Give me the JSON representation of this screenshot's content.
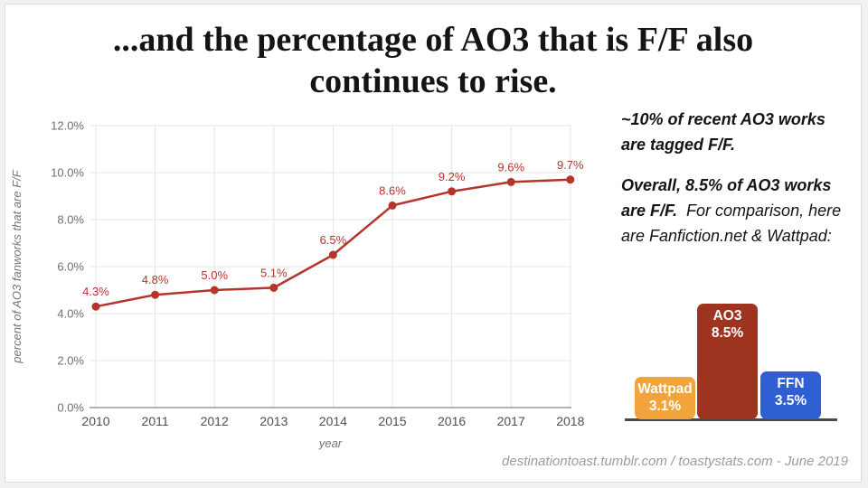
{
  "slide": {
    "title_line1": "...and the percentage of AO3 that is F/F also",
    "title_line2": "continues to rise.",
    "footer": "destinationtoast.tumblr.com / toastystats.com - June 2019",
    "background_color": "#ffffff",
    "frame_color": "#f1f1f1"
  },
  "annotations": {
    "p1": "~10% of recent AO3 works are tagged F/F.",
    "p2_bold": "Overall, 8.5% of AO3 works are F/F.",
    "p2_rest": "  For comparison, here are Fanfiction.net & Wattpad:"
  },
  "chart_data": [
    {
      "type": "line",
      "x": [
        "2010",
        "2011",
        "2012",
        "2013",
        "2014",
        "2015",
        "2016",
        "2017",
        "2018"
      ],
      "values": [
        4.3,
        4.8,
        5.0,
        5.1,
        6.5,
        8.6,
        9.2,
        9.6,
        9.7
      ],
      "data_labels": [
        "4.3%",
        "4.8%",
        "5.0%",
        "5.1%",
        "6.5%",
        "8.6%",
        "9.2%",
        "9.6%",
        "9.7%"
      ],
      "title": "",
      "xlabel": "year",
      "ylabel": "percent of AO3 fanworks that are F/F",
      "ylim": [
        0,
        12
      ],
      "ytick_step": 2,
      "grid": true,
      "legend": "none",
      "line_color": "#b5342c",
      "label_color": "#b5342c",
      "axis_color": "#9a9a9a",
      "grid_color": "#e4e4e4"
    },
    {
      "type": "bar",
      "categories": [
        "Wattpad",
        "AO3",
        "FFN"
      ],
      "values": [
        3.1,
        8.5,
        3.5
      ],
      "value_labels": [
        "3.1%",
        "8.5%",
        "3.5%"
      ],
      "colors": [
        "#f2a43c",
        "#9e3420",
        "#2f5fd2"
      ],
      "text_color": "#ffffff",
      "baseline_color": "#4a4a4a"
    }
  ]
}
